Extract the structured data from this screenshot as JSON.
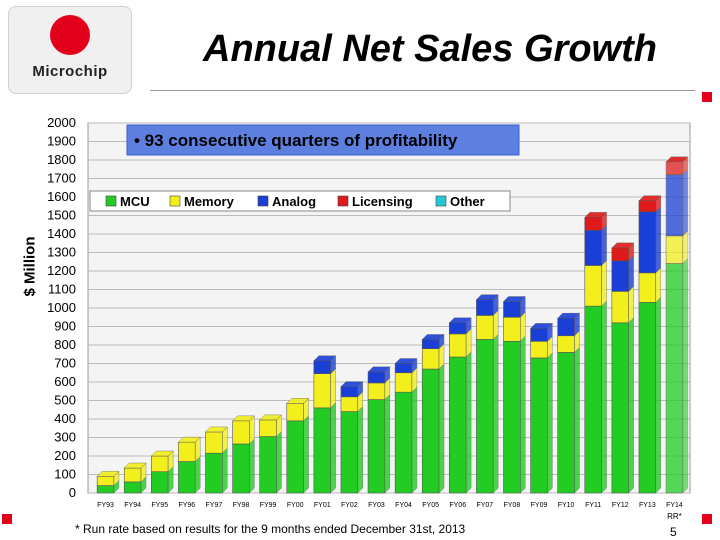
{
  "logo": {
    "text": "Microchip"
  },
  "page_title": "Annual Net Sales Growth",
  "footnote": "* Run rate based on results for the 9 months ended December 31st, 2013",
  "page_number": "5",
  "chart_data": {
    "type": "bar",
    "stacked": true,
    "title": "Annual Net Sales Growth",
    "annotation": "• 93 consecutive quarters of profitability",
    "ylabel": "$ Million",
    "xlabel": "",
    "ylim": [
      0,
      2000
    ],
    "yticks": [
      0,
      100,
      200,
      300,
      400,
      500,
      600,
      700,
      800,
      900,
      1000,
      1100,
      1200,
      1300,
      1400,
      1500,
      1600,
      1700,
      1800,
      1900,
      2000
    ],
    "legend_position": "top",
    "categories": [
      "FY93",
      "FY94",
      "FY95",
      "FY96",
      "FY97",
      "FY98",
      "FY99",
      "FY00",
      "FY01",
      "FY02",
      "FY03",
      "FY04",
      "FY05",
      "FY06",
      "FY07",
      "FY08",
      "FY09",
      "FY10",
      "FY11",
      "FY12",
      "FY13",
      "FY14"
    ],
    "rr_label": "RR*",
    "series": [
      {
        "name": "MCU",
        "color": "#22cc22",
        "values": [
          40,
          60,
          115,
          170,
          215,
          265,
          305,
          390,
          460,
          440,
          505,
          545,
          670,
          735,
          830,
          820,
          730,
          760,
          1010,
          920,
          1030,
          1240
        ]
      },
      {
        "name": "Memory",
        "color": "#f2ef1c",
        "values": [
          50,
          75,
          85,
          105,
          115,
          125,
          90,
          95,
          185,
          80,
          90,
          105,
          110,
          125,
          130,
          130,
          90,
          90,
          220,
          170,
          160,
          150
        ]
      },
      {
        "name": "Analog",
        "color": "#1a3fd6",
        "values": [
          0,
          0,
          0,
          0,
          0,
          0,
          0,
          0,
          70,
          55,
          60,
          50,
          50,
          60,
          85,
          85,
          70,
          95,
          190,
          165,
          330,
          330
        ]
      },
      {
        "name": "Licensing",
        "color": "#e01a1a",
        "values": [
          0,
          0,
          0,
          0,
          0,
          0,
          0,
          0,
          0,
          0,
          0,
          0,
          0,
          0,
          0,
          0,
          0,
          0,
          70,
          70,
          60,
          70
        ]
      },
      {
        "name": "Other",
        "color": "#22c7d6",
        "values": [
          0,
          0,
          0,
          0,
          0,
          0,
          0,
          0,
          0,
          0,
          0,
          0,
          0,
          0,
          0,
          0,
          0,
          0,
          0,
          0,
          0,
          0
        ]
      }
    ]
  }
}
